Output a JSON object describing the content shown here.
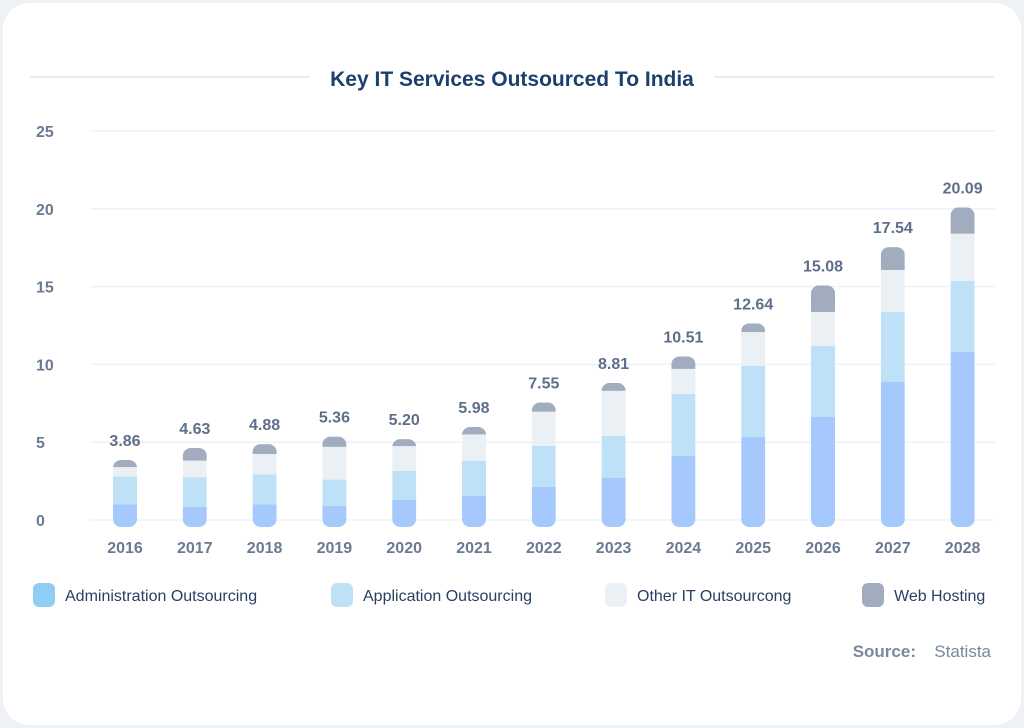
{
  "chart_data": {
    "type": "bar",
    "stacked": true,
    "title": "Key IT Services Outsourced To India",
    "categories": [
      "2016",
      "2017",
      "2018",
      "2019",
      "2020",
      "2021",
      "2022",
      "2023",
      "2024",
      "2025",
      "2026",
      "2027",
      "2028"
    ],
    "totals": [
      "3.86",
      "4.63",
      "4.88",
      "5.36",
      "5.20",
      "5.98",
      "7.55",
      "8.81",
      "10.51",
      "12.64",
      "15.08",
      "17.54",
      "20.09"
    ],
    "series": [
      {
        "name": "Administration Outsourcing",
        "color": "#a5c9fc",
        "legend_color": "#8fcdf5",
        "values": [
          1.0,
          0.85,
          1.0,
          0.9,
          1.3,
          1.54,
          2.12,
          2.7,
          4.11,
          5.33,
          6.62,
          8.87,
          10.8
        ]
      },
      {
        "name": "Application Outsourcing",
        "color": "#bfe1f7",
        "legend_color": "#bfe1f7",
        "values": [
          1.8,
          1.9,
          1.94,
          1.7,
          1.85,
          2.26,
          2.64,
          2.7,
          4.0,
          4.57,
          4.56,
          4.5,
          4.56
        ]
      },
      {
        "name": "Other IT Outsourcong",
        "color": "#ebf0f5",
        "legend_color": "#ebf0f5",
        "values": [
          0.6,
          1.07,
          1.3,
          2.1,
          1.6,
          1.7,
          2.2,
          2.9,
          1.6,
          2.18,
          2.19,
          2.7,
          3.04
        ]
      },
      {
        "name": "Web Hosting",
        "color": "#a1adbf",
        "legend_color": "#a1adbf",
        "values": [
          0.46,
          0.81,
          0.64,
          0.66,
          0.45,
          0.48,
          0.59,
          0.51,
          0.8,
          0.56,
          1.71,
          1.47,
          1.69
        ]
      }
    ],
    "y_ticks": [
      "0",
      "5",
      "10",
      "15",
      "20",
      "25"
    ],
    "ylim": [
      0,
      25
    ],
    "grid": true,
    "legend_position": "bottom"
  },
  "source": {
    "label": "Source:",
    "value": "Statista"
  }
}
